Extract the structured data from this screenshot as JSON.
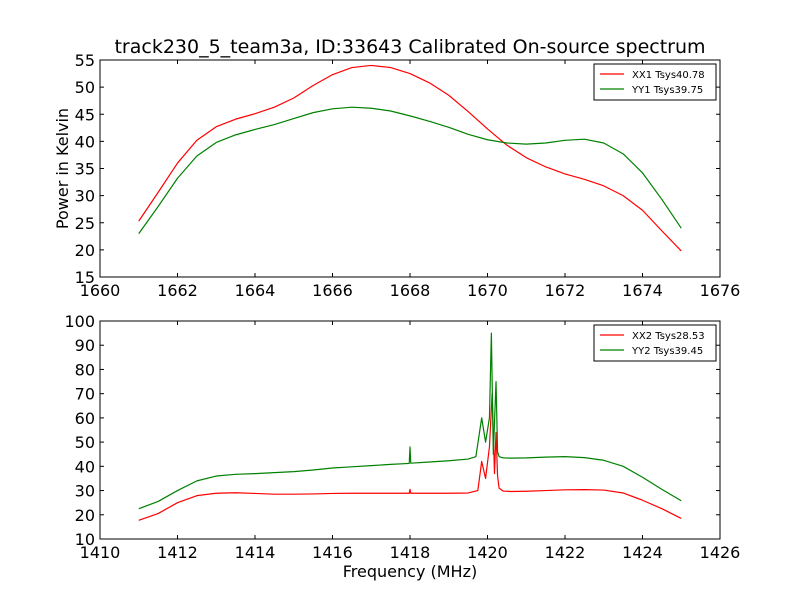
{
  "title": "track230_5_team3a, ID:33643 Calibrated On-source spectrum",
  "chart_data": [
    {
      "type": "line",
      "xlabel": "",
      "ylabel": "Power in Kelvin",
      "xlim": [
        1660,
        1676
      ],
      "ylim": [
        15,
        55
      ],
      "xticks": [
        "1660",
        "1662",
        "1664",
        "1666",
        "1668",
        "1670",
        "1672",
        "1674",
        "1676"
      ],
      "yticks": [
        "15",
        "20",
        "25",
        "30",
        "35",
        "40",
        "45",
        "50",
        "55"
      ],
      "legend_position": "top-right",
      "series": [
        {
          "name": "XX1 Tsys40.78",
          "color": "#ff0000",
          "x": [
            1661.0,
            1661.5,
            1662.0,
            1662.5,
            1663.0,
            1663.5,
            1664.0,
            1664.5,
            1665.0,
            1665.5,
            1666.0,
            1666.5,
            1667.0,
            1667.5,
            1668.0,
            1668.5,
            1669.0,
            1669.5,
            1670.0,
            1670.5,
            1671.0,
            1671.5,
            1672.0,
            1672.5,
            1673.0,
            1673.5,
            1674.0,
            1674.5,
            1675.0
          ],
          "y": [
            25.3,
            30.6,
            36.0,
            40.2,
            42.7,
            44.1,
            45.1,
            46.3,
            48.0,
            50.3,
            52.3,
            53.6,
            54.0,
            53.6,
            52.5,
            50.8,
            48.5,
            45.5,
            42.3,
            39.3,
            37.0,
            35.3,
            34.0,
            33.0,
            31.8,
            30.0,
            27.3,
            23.5,
            19.8
          ]
        },
        {
          "name": "YY1 Tsys39.75",
          "color": "#008000",
          "x": [
            1661.0,
            1661.5,
            1662.0,
            1662.5,
            1663.0,
            1663.5,
            1664.0,
            1664.5,
            1665.0,
            1665.5,
            1666.0,
            1666.5,
            1667.0,
            1667.5,
            1668.0,
            1668.5,
            1669.0,
            1669.5,
            1670.0,
            1670.5,
            1671.0,
            1671.5,
            1672.0,
            1672.5,
            1673.0,
            1673.5,
            1674.0,
            1674.5,
            1675.0
          ],
          "y": [
            23.0,
            28.0,
            33.2,
            37.3,
            39.8,
            41.2,
            42.2,
            43.1,
            44.2,
            45.3,
            46.0,
            46.3,
            46.1,
            45.6,
            44.7,
            43.7,
            42.6,
            41.3,
            40.3,
            39.7,
            39.5,
            39.7,
            40.2,
            40.4,
            39.7,
            37.7,
            34.2,
            29.3,
            24.0
          ]
        }
      ]
    },
    {
      "type": "line",
      "xlabel": "Frequency (MHz)",
      "ylabel": "",
      "xlim": [
        1410,
        1426
      ],
      "ylim": [
        10,
        100
      ],
      "xticks": [
        "1410",
        "1412",
        "1414",
        "1416",
        "1418",
        "1420",
        "1422",
        "1424",
        "1426"
      ],
      "yticks": [
        "10",
        "20",
        "30",
        "40",
        "50",
        "60",
        "70",
        "80",
        "90",
        "100"
      ],
      "legend_position": "top-right",
      "series": [
        {
          "name": "XX2 Tsys28.53",
          "color": "#ff0000",
          "x": [
            1411.0,
            1411.5,
            1412.0,
            1412.5,
            1413.0,
            1413.5,
            1414.0,
            1414.5,
            1415.0,
            1415.5,
            1416.0,
            1416.5,
            1417.0,
            1417.5,
            1417.98,
            1418.0,
            1418.02,
            1418.5,
            1419.0,
            1419.5,
            1419.75,
            1419.85,
            1419.95,
            1420.05,
            1420.12,
            1420.18,
            1420.22,
            1420.26,
            1420.3,
            1420.4,
            1420.6,
            1421.0,
            1421.5,
            1422.0,
            1422.5,
            1423.0,
            1423.5,
            1424.0,
            1424.5,
            1425.0
          ],
          "y": [
            17.7,
            20.5,
            25.0,
            27.9,
            28.9,
            29.1,
            28.8,
            28.5,
            28.5,
            28.6,
            28.8,
            28.9,
            28.9,
            28.9,
            28.9,
            30.5,
            28.9,
            28.9,
            28.9,
            29.0,
            30.0,
            42.0,
            35.0,
            48.0,
            70.0,
            37.0,
            54.0,
            36.0,
            31.0,
            29.8,
            29.6,
            29.7,
            30.0,
            30.3,
            30.4,
            30.2,
            29.0,
            26.0,
            22.5,
            18.5
          ]
        },
        {
          "name": "YY2 Tsys39.45",
          "color": "#008000",
          "x": [
            1411.0,
            1411.5,
            1412.0,
            1412.5,
            1413.0,
            1413.5,
            1414.0,
            1414.5,
            1415.0,
            1415.5,
            1416.0,
            1416.5,
            1417.0,
            1417.5,
            1417.98,
            1418.0,
            1418.02,
            1418.5,
            1419.0,
            1419.5,
            1419.7,
            1419.85,
            1419.95,
            1420.05,
            1420.1,
            1420.15,
            1420.22,
            1420.26,
            1420.3,
            1420.4,
            1420.6,
            1421.0,
            1421.5,
            1422.0,
            1422.5,
            1423.0,
            1423.5,
            1424.0,
            1424.5,
            1425.0
          ],
          "y": [
            22.5,
            25.5,
            30.0,
            34.0,
            36.0,
            36.7,
            37.0,
            37.4,
            37.8,
            38.5,
            39.3,
            39.8,
            40.3,
            40.8,
            41.2,
            48.0,
            41.3,
            41.8,
            42.3,
            43.0,
            44.0,
            60.0,
            50.0,
            60.0,
            95.0,
            45.0,
            75.0,
            46.0,
            44.0,
            43.5,
            43.4,
            43.5,
            43.8,
            44.0,
            43.6,
            42.5,
            40.0,
            35.5,
            30.5,
            25.8
          ]
        }
      ]
    }
  ]
}
